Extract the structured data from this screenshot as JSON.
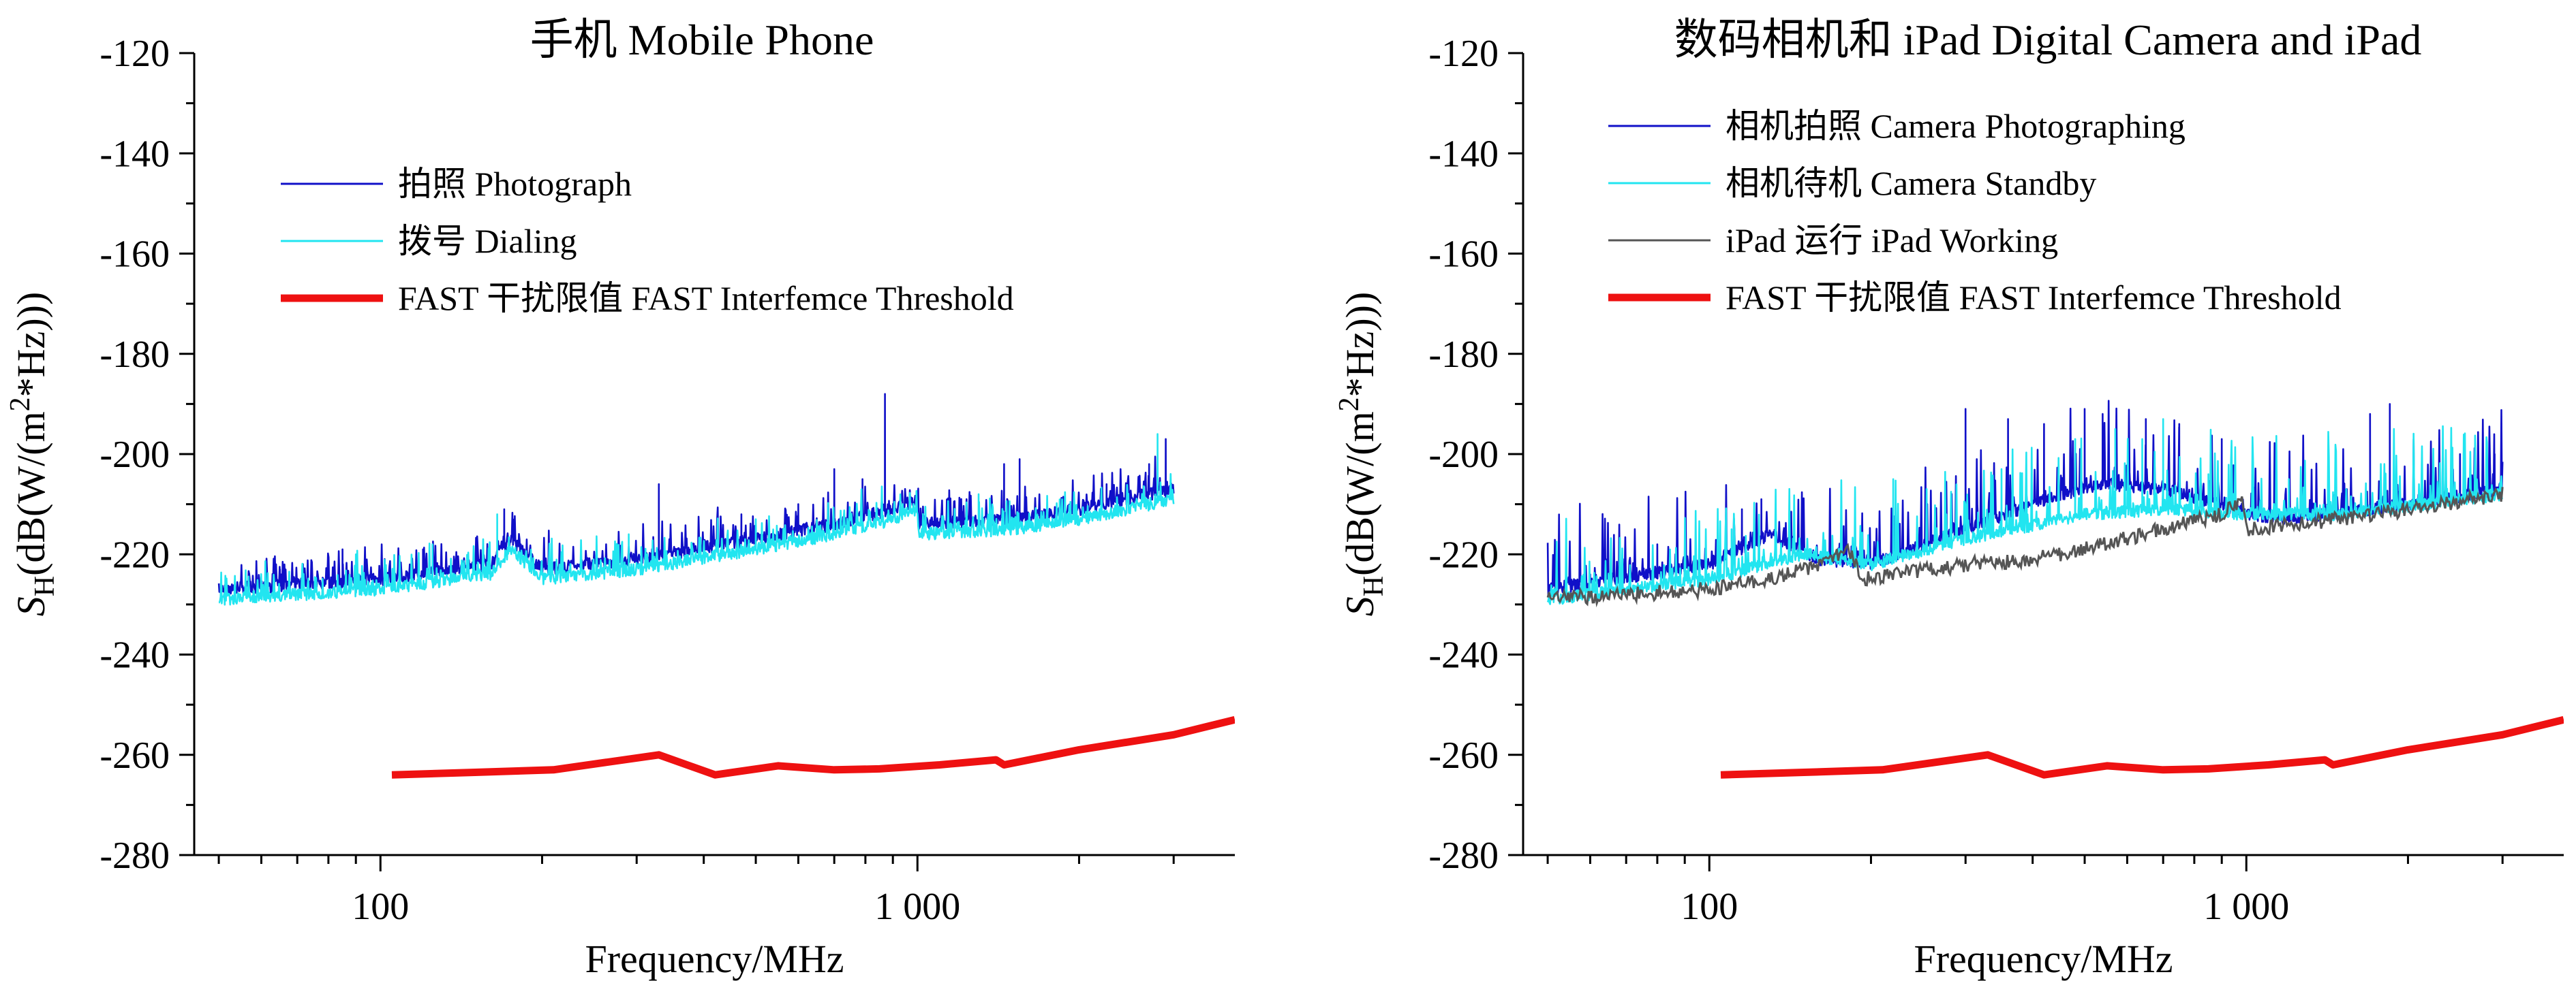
{
  "chart_data": [
    {
      "type": "line",
      "title": "手机 Mobile Phone",
      "xlabel": "Frequency/MHz",
      "ylabel": "S_H(dB(W/(m^2*Hz)))",
      "xscale": "log",
      "xlim": [
        45,
        3900
      ],
      "ylim": [
        -280,
        -120
      ],
      "x_ticks": [
        100,
        1000
      ],
      "x_tick_labels": [
        "100",
        "1 000"
      ],
      "y_ticks": [
        -120,
        -140,
        -160,
        -180,
        -200,
        -220,
        -240,
        -260,
        -280
      ],
      "y_tick_labels": [
        "-120",
        "-140",
        "-160",
        "-180",
        "-200",
        "-220",
        "-240",
        "-260",
        "-280"
      ],
      "legend_position": "top-left",
      "series": [
        {
          "name": "拍照 Photograph",
          "color": "#1010c8",
          "style": "spiky",
          "floor": [
            [
              50,
              -227
            ],
            [
              100,
              -225
            ],
            [
              160,
              -222
            ],
            [
              175,
              -217
            ],
            [
              200,
              -223
            ],
            [
              300,
              -221
            ],
            [
              500,
              -217
            ],
            [
              700,
              -214
            ],
            [
              900,
              -211
            ],
            [
              1000,
              -209
            ],
            [
              1005,
              -214
            ],
            [
              1500,
              -213
            ],
            [
              2000,
              -211
            ],
            [
              3000,
              -207
            ]
          ],
          "spikes": [
            [
              65,
              -223
            ],
            [
              85,
              -219
            ],
            [
              120,
              -219
            ],
            [
              170,
              -211
            ],
            [
              330,
              -206
            ],
            [
              470,
              -212
            ],
            [
              600,
              -210
            ],
            [
              700,
              -203
            ],
            [
              790,
              -205
            ],
            [
              870,
              -188
            ],
            [
              1450,
              -202
            ],
            [
              1550,
              -201
            ],
            [
              2250,
              -206
            ],
            [
              2700,
              -202
            ],
            [
              2900,
              -197
            ]
          ]
        },
        {
          "name": "拨号 Dialing",
          "color": "#22e5f0",
          "style": "spiky",
          "floor": [
            [
              50,
              -229
            ],
            [
              100,
              -227
            ],
            [
              160,
              -224
            ],
            [
              175,
              -219
            ],
            [
              200,
              -225
            ],
            [
              300,
              -223
            ],
            [
              500,
              -219
            ],
            [
              700,
              -216
            ],
            [
              900,
              -213
            ],
            [
              1000,
              -211
            ],
            [
              1005,
              -216
            ],
            [
              1500,
              -215
            ],
            [
              2000,
              -213
            ],
            [
              3000,
              -209
            ]
          ],
          "spikes": [
            [
              90,
              -220
            ],
            [
              125,
              -218
            ],
            [
              165,
              -212
            ],
            [
              290,
              -216
            ],
            [
              500,
              -213
            ],
            [
              650,
              -214
            ],
            [
              880,
              -212
            ],
            [
              1300,
              -208
            ],
            [
              2800,
              -196
            ]
          ]
        },
        {
          "name": "FAST 干扰限值 FAST Interfemce Threshold",
          "color": "#ee1111",
          "style": "thick",
          "points": [
            [
              105,
              -264
            ],
            [
              150,
              -263.5
            ],
            [
              210,
              -263
            ],
            [
              330,
              -260
            ],
            [
              420,
              -264
            ],
            [
              550,
              -262.2
            ],
            [
              700,
              -263
            ],
            [
              850,
              -262.8
            ],
            [
              1100,
              -262
            ],
            [
              1400,
              -261
            ],
            [
              1450,
              -262
            ],
            [
              2000,
              -259
            ],
            [
              3000,
              -256
            ],
            [
              3900,
              -253
            ]
          ]
        }
      ]
    },
    {
      "type": "line",
      "title": "数码相机和 iPad  Digital Camera and iPad",
      "xlabel": "Frequency/MHz",
      "ylabel": "S_H(dB(W/(m^2*Hz)))",
      "xscale": "log",
      "xlim": [
        45,
        3900
      ],
      "ylim": [
        -280,
        -120
      ],
      "x_ticks": [
        100,
        1000
      ],
      "x_tick_labels": [
        "100",
        "1 000"
      ],
      "y_ticks": [
        -120,
        -140,
        -160,
        -180,
        -200,
        -220,
        -240,
        -260,
        -280
      ],
      "y_tick_labels": [
        "-120",
        "-140",
        "-160",
        "-180",
        "-200",
        "-220",
        "-240",
        "-260",
        "-280"
      ],
      "legend_position": "top-left",
      "series": [
        {
          "name": "相机拍照 Camera Photographing",
          "color": "#1010c8",
          "style": "spiky",
          "floor": [
            [
              50,
              -227
            ],
            [
              100,
              -222
            ],
            [
              130,
              -216
            ],
            [
              160,
              -221
            ],
            [
              200,
              -222
            ],
            [
              300,
              -215
            ],
            [
              450,
              -208
            ],
            [
              550,
              -206
            ],
            [
              700,
              -207
            ],
            [
              900,
              -210
            ],
            [
              1000,
              -212
            ],
            [
              1200,
              -213
            ],
            [
              2000,
              -210
            ],
            [
              3000,
              -207
            ]
          ],
          "spikes": [
            [
              60,
              -224
            ],
            [
              80,
              -218
            ],
            [
              115,
              -211
            ],
            [
              125,
              -209
            ],
            [
              300,
              -191
            ],
            [
              360,
              -193
            ],
            [
              420,
              -194
            ],
            [
              500,
              -191
            ],
            [
              540,
              -192
            ],
            [
              650,
              -193
            ],
            [
              750,
              -194
            ],
            [
              900,
              -197
            ],
            [
              1700,
              -192
            ],
            [
              1850,
              -190
            ],
            [
              2500,
              -200
            ],
            [
              2900,
              -200
            ]
          ]
        },
        {
          "name": "相机待机 Camera Standby",
          "color": "#22e5f0",
          "style": "spiky",
          "floor": [
            [
              50,
              -229
            ],
            [
              100,
              -225
            ],
            [
              150,
              -220
            ],
            [
              200,
              -222
            ],
            [
              300,
              -217
            ],
            [
              500,
              -212
            ],
            [
              700,
              -211
            ],
            [
              1000,
              -212
            ],
            [
              1500,
              -212
            ],
            [
              3000,
              -208
            ]
          ],
          "spikes": [
            [
              110,
              -215
            ],
            [
              220,
              -205
            ],
            [
              350,
              -203
            ],
            [
              480,
              -197
            ],
            [
              570,
              -195
            ],
            [
              640,
              -197
            ],
            [
              700,
              -193
            ],
            [
              850,
              -204
            ],
            [
              1200,
              -205
            ]
          ]
        },
        {
          "name": "iPad 运行 iPad Working",
          "color": "#555555",
          "style": "noisy",
          "points": [
            [
              50,
              -229
            ],
            [
              70,
              -228
            ],
            [
              100,
              -227
            ],
            [
              130,
              -225
            ],
            [
              150,
              -223
            ],
            [
              170,
              -221
            ],
            [
              180,
              -219
            ],
            [
              195,
              -225
            ],
            [
              300,
              -222
            ],
            [
              400,
              -221
            ],
            [
              500,
              -219
            ],
            [
              700,
              -215
            ],
            [
              900,
              -212
            ],
            [
              980,
              -209
            ],
            [
              1000,
              -215
            ],
            [
              1500,
              -213
            ],
            [
              2000,
              -211
            ],
            [
              3000,
              -208
            ]
          ]
        },
        {
          "name": "FAST 干扰限值 FAST Interfemce Threshold",
          "color": "#ee1111",
          "style": "thick",
          "points": [
            [
              105,
              -264
            ],
            [
              150,
              -263.5
            ],
            [
              210,
              -263
            ],
            [
              330,
              -260
            ],
            [
              420,
              -264
            ],
            [
              550,
              -262.2
            ],
            [
              700,
              -263
            ],
            [
              850,
              -262.8
            ],
            [
              1100,
              -262
            ],
            [
              1400,
              -261
            ],
            [
              1450,
              -262
            ],
            [
              2000,
              -259
            ],
            [
              3000,
              -256
            ],
            [
              3900,
              -253
            ]
          ]
        }
      ]
    }
  ]
}
